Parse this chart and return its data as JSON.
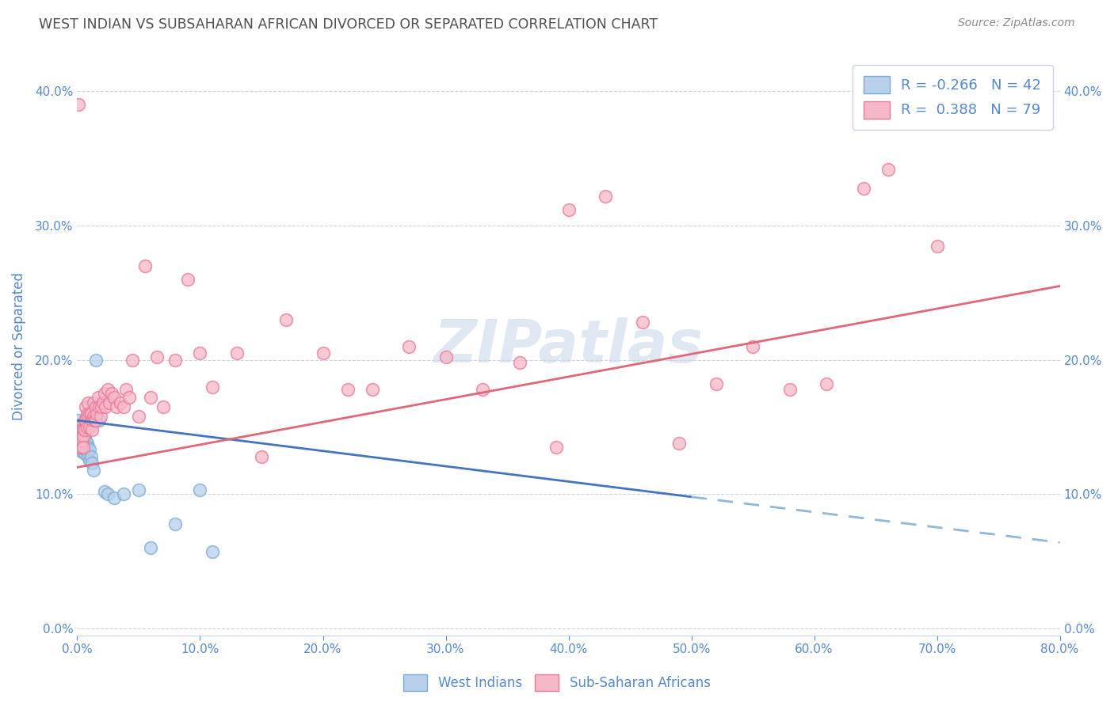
{
  "title": "WEST INDIAN VS SUBSAHARAN AFRICAN DIVORCED OR SEPARATED CORRELATION CHART",
  "source": "Source: ZipAtlas.com",
  "ylabel": "Divorced or Separated",
  "watermark": "ZIPatlas",
  "legend_r_blue": "-0.266",
  "legend_n_blue": "42",
  "legend_r_pink": "0.388",
  "legend_n_pink": "79",
  "blue_fill_color": "#b8d0eb",
  "pink_fill_color": "#f5b8c8",
  "blue_edge_color": "#7aaad0",
  "pink_edge_color": "#e87898",
  "blue_line_color": "#4472c4",
  "pink_line_color": "#e06878",
  "blue_dashed_color": "#90b8d8",
  "background_color": "#ffffff",
  "grid_color": "#c8d4e4",
  "title_color": "#505050",
  "axis_label_color": "#5588cc",
  "source_color": "#888888",
  "xlim": [
    0.0,
    0.8
  ],
  "ylim": [
    -0.005,
    0.425
  ],
  "xtick_step": 0.1,
  "ytick_step": 0.1,
  "west_indians_x": [
    0.001,
    0.001,
    0.002,
    0.002,
    0.002,
    0.003,
    0.003,
    0.003,
    0.003,
    0.004,
    0.004,
    0.004,
    0.005,
    0.005,
    0.005,
    0.005,
    0.006,
    0.006,
    0.006,
    0.007,
    0.007,
    0.008,
    0.008,
    0.009,
    0.009,
    0.01,
    0.01,
    0.011,
    0.012,
    0.013,
    0.015,
    0.016,
    0.018,
    0.022,
    0.025,
    0.03,
    0.038,
    0.05,
    0.06,
    0.08,
    0.1,
    0.11
  ],
  "west_indians_y": [
    0.155,
    0.145,
    0.15,
    0.145,
    0.14,
    0.148,
    0.143,
    0.138,
    0.132,
    0.145,
    0.14,
    0.135,
    0.148,
    0.143,
    0.138,
    0.132,
    0.142,
    0.137,
    0.13,
    0.14,
    0.133,
    0.138,
    0.132,
    0.135,
    0.128,
    0.133,
    0.125,
    0.128,
    0.123,
    0.118,
    0.2,
    0.165,
    0.155,
    0.102,
    0.1,
    0.097,
    0.1,
    0.103,
    0.06,
    0.078,
    0.103,
    0.057
  ],
  "subsaharan_x": [
    0.001,
    0.001,
    0.002,
    0.002,
    0.003,
    0.003,
    0.003,
    0.004,
    0.004,
    0.005,
    0.005,
    0.005,
    0.006,
    0.006,
    0.007,
    0.007,
    0.008,
    0.008,
    0.009,
    0.009,
    0.01,
    0.01,
    0.011,
    0.012,
    0.012,
    0.013,
    0.013,
    0.014,
    0.015,
    0.015,
    0.016,
    0.017,
    0.018,
    0.019,
    0.02,
    0.021,
    0.022,
    0.023,
    0.025,
    0.026,
    0.028,
    0.03,
    0.032,
    0.035,
    0.038,
    0.04,
    0.042,
    0.045,
    0.05,
    0.055,
    0.06,
    0.065,
    0.07,
    0.08,
    0.09,
    0.1,
    0.11,
    0.13,
    0.15,
    0.17,
    0.2,
    0.22,
    0.24,
    0.27,
    0.3,
    0.33,
    0.36,
    0.4,
    0.43,
    0.46,
    0.49,
    0.52,
    0.55,
    0.58,
    0.61,
    0.64,
    0.66,
    0.7,
    0.39
  ],
  "subsaharan_y": [
    0.39,
    0.145,
    0.15,
    0.135,
    0.148,
    0.143,
    0.135,
    0.148,
    0.14,
    0.148,
    0.143,
    0.135,
    0.155,
    0.148,
    0.165,
    0.155,
    0.16,
    0.15,
    0.168,
    0.158,
    0.16,
    0.15,
    0.16,
    0.155,
    0.148,
    0.168,
    0.158,
    0.155,
    0.165,
    0.155,
    0.16,
    0.172,
    0.165,
    0.158,
    0.165,
    0.168,
    0.175,
    0.165,
    0.178,
    0.168,
    0.175,
    0.172,
    0.165,
    0.168,
    0.165,
    0.178,
    0.172,
    0.2,
    0.158,
    0.27,
    0.172,
    0.202,
    0.165,
    0.2,
    0.26,
    0.205,
    0.18,
    0.205,
    0.128,
    0.23,
    0.205,
    0.178,
    0.178,
    0.21,
    0.202,
    0.178,
    0.198,
    0.312,
    0.322,
    0.228,
    0.138,
    0.182,
    0.21,
    0.178,
    0.182,
    0.328,
    0.342,
    0.285,
    0.135
  ],
  "blue_line_x_start": 0.0,
  "blue_line_x_solid_end": 0.5,
  "blue_line_x_end": 0.8,
  "blue_line_y_at_0": 0.155,
  "blue_line_y_at_50": 0.098,
  "blue_line_y_at_80": 0.064,
  "pink_line_x_start": 0.0,
  "pink_line_x_end": 0.8,
  "pink_line_y_at_0": 0.12,
  "pink_line_y_at_80": 0.255
}
